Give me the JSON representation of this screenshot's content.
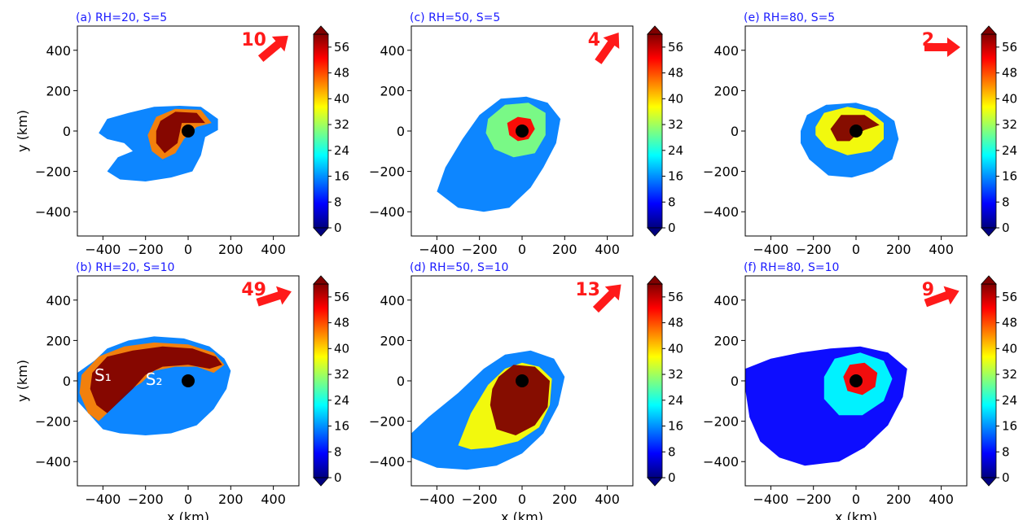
{
  "chart_data": [
    {
      "type": "heatmap",
      "panel": "a",
      "title": "(a) RH=20, S=5",
      "xlim": [
        -520,
        520
      ],
      "ylim": [
        -520,
        520
      ],
      "xticks": [
        -400,
        -200,
        0,
        200,
        400
      ],
      "yticks": [
        -400,
        -200,
        0,
        200,
        400
      ],
      "xlabel": "",
      "ylabel": "y (km)",
      "colorbar": {
        "min": 0,
        "max": 60,
        "ticks": [
          0,
          8,
          16,
          24,
          32,
          40,
          48,
          56
        ]
      },
      "shear_label": "10",
      "shear_direction_deg": 40,
      "center": [
        0,
        0
      ],
      "max_extent_km": 520
    },
    {
      "type": "heatmap",
      "panel": "b",
      "title": "(b) RH=20, S=10",
      "xlim": [
        -520,
        520
      ],
      "ylim": [
        -520,
        520
      ],
      "xticks": [
        -400,
        -200,
        0,
        200,
        400
      ],
      "yticks": [
        -400,
        -200,
        0,
        200,
        400
      ],
      "xlabel": "x (km)",
      "ylabel": "y (km)",
      "colorbar": {
        "min": 0,
        "max": 60,
        "ticks": [
          0,
          8,
          16,
          24,
          32,
          40,
          48,
          56
        ]
      },
      "shear_label": "49",
      "shear_direction_deg": 18,
      "annotations": [
        {
          "text": "S₁",
          "x": -400,
          "y": 0
        },
        {
          "text": "S₂",
          "x": -160,
          "y": -20
        }
      ],
      "center": [
        0,
        0
      ]
    },
    {
      "type": "heatmap",
      "panel": "c",
      "title": "(c) RH=50, S=5",
      "xlim": [
        -520,
        520
      ],
      "ylim": [
        -520,
        520
      ],
      "xticks": [
        -400,
        -200,
        0,
        200,
        400
      ],
      "yticks": [
        -400,
        -200,
        0,
        200,
        400
      ],
      "xlabel": "",
      "ylabel": "",
      "colorbar": {
        "min": 0,
        "max": 60,
        "ticks": [
          0,
          8,
          16,
          24,
          32,
          40,
          48,
          56
        ]
      },
      "shear_label": "4",
      "shear_direction_deg": 55,
      "center": [
        0,
        0
      ]
    },
    {
      "type": "heatmap",
      "panel": "d",
      "title": "(d) RH=50, S=10",
      "xlim": [
        -520,
        520
      ],
      "ylim": [
        -520,
        520
      ],
      "xticks": [
        -400,
        -200,
        0,
        200,
        400
      ],
      "yticks": [
        -400,
        -200,
        0,
        200,
        400
      ],
      "xlabel": "x (km)",
      "ylabel": "",
      "colorbar": {
        "min": 0,
        "max": 60,
        "ticks": [
          0,
          8,
          16,
          24,
          32,
          40,
          48,
          56
        ]
      },
      "shear_label": "13",
      "shear_direction_deg": 45,
      "center": [
        0,
        0
      ]
    },
    {
      "type": "heatmap",
      "panel": "e",
      "title": "(e) RH=80, S=5",
      "xlim": [
        -520,
        520
      ],
      "ylim": [
        -520,
        520
      ],
      "xticks": [
        -400,
        -200,
        0,
        200,
        400
      ],
      "yticks": [
        -400,
        -200,
        0,
        200,
        400
      ],
      "xlabel": "",
      "ylabel": "",
      "colorbar": {
        "min": 0,
        "max": 60,
        "ticks": [
          0,
          8,
          16,
          24,
          32,
          40,
          48,
          56
        ]
      },
      "shear_label": "2",
      "shear_direction_deg": 0,
      "center": [
        0,
        0
      ]
    },
    {
      "type": "heatmap",
      "panel": "f",
      "title": "(f) RH=80, S=10",
      "xlim": [
        -520,
        520
      ],
      "ylim": [
        -520,
        520
      ],
      "xticks": [
        -400,
        -200,
        0,
        200,
        400
      ],
      "yticks": [
        -400,
        -200,
        0,
        200,
        400
      ],
      "xlabel": "x (km)",
      "ylabel": "",
      "colorbar": {
        "min": 0,
        "max": 60,
        "ticks": [
          0,
          8,
          16,
          24,
          32,
          40,
          48,
          56
        ]
      },
      "shear_label": "9",
      "shear_direction_deg": 20,
      "center": [
        0,
        0
      ]
    }
  ],
  "colors": {
    "title": "#1a1aff",
    "shear_arrow": "#ff1a1a",
    "colormap": [
      "#00007f",
      "#0000ff",
      "#007fff",
      "#00ffff",
      "#7fff7f",
      "#ffff00",
      "#ff7f00",
      "#ff0000",
      "#7f0000"
    ]
  }
}
